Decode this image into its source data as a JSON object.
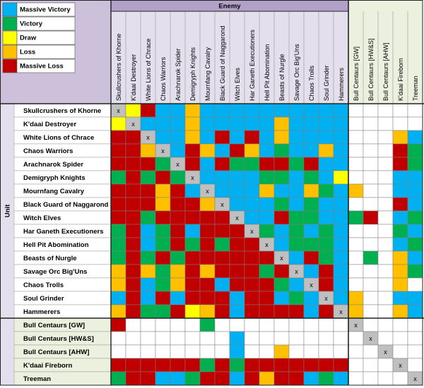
{
  "legend": [
    {
      "label": "Massive Victory",
      "color": "#00b0f0"
    },
    {
      "label": "Victory",
      "color": "#00b050"
    },
    {
      "label": "Draw",
      "color": "#ffff00"
    },
    {
      "label": "Loss",
      "color": "#ffc000"
    },
    {
      "label": "Massive Loss",
      "color": "#c00000"
    }
  ],
  "column_header": "Enemy",
  "row_header": "Unit",
  "columns": [
    "Skullcrushers of Khorne",
    "K'daai Destroyer",
    "White Lions of Chrace",
    "Chaos Warriors",
    "Arachnarok Spider",
    "Demigryph Knights",
    "Mournfang Cavalry",
    "Black Guard of Naggarond",
    "Witch Elves",
    "Har Ganeth Executioners",
    "Hell Pit Abomination",
    "Beasts of Nurgle",
    "Savage Orc Big'Uns",
    "Chaos Trolls",
    "Soul Grinder",
    "Hammerers",
    "Bull Centaurs [GW]",
    "Bull Centaurs [HW&S]",
    "Bull Centaurs [AHW]",
    "K'daai Fireborn",
    "Treeman"
  ],
  "rows": [
    {
      "label": "Skullcrushers of Khorne",
      "cells": [
        "x",
        2,
        4,
        0,
        0,
        3,
        0,
        0,
        0,
        0,
        0,
        0,
        0,
        0,
        0,
        0,
        null,
        null,
        null,
        null,
        null
      ]
    },
    {
      "label": "K'daai Destroyer",
      "cells": [
        2,
        "x",
        0,
        0,
        0,
        3,
        0,
        0,
        0,
        0,
        0,
        3,
        0,
        0,
        0,
        0,
        null,
        null,
        null,
        null,
        null
      ]
    },
    {
      "label": "White Lions of Chrace",
      "cells": [
        4,
        4,
        "x",
        0,
        0,
        3,
        0,
        4,
        0,
        4,
        0,
        3,
        0,
        0,
        0,
        0,
        null,
        null,
        null,
        3,
        0
      ]
    },
    {
      "label": "Chaos Warriors",
      "cells": [
        4,
        4,
        3,
        "x",
        0,
        4,
        3,
        0,
        4,
        3,
        0,
        1,
        0,
        0,
        3,
        0,
        null,
        null,
        null,
        4,
        1
      ]
    },
    {
      "label": "Arachnarok Spider",
      "cells": [
        4,
        4,
        4,
        1,
        "x",
        4,
        0,
        4,
        1,
        1,
        4,
        4,
        1,
        4,
        0,
        0,
        null,
        null,
        null,
        4,
        1
      ]
    },
    {
      "label": "Demigryph Knights",
      "cells": [
        1,
        4,
        1,
        4,
        1,
        "x",
        0,
        0,
        0,
        0,
        1,
        1,
        0,
        1,
        0,
        2,
        null,
        null,
        null,
        0,
        0
      ]
    },
    {
      "label": "Mournfang Cavalry",
      "cells": [
        4,
        4,
        4,
        3,
        4,
        0,
        "x",
        0,
        0,
        0,
        3,
        0,
        0,
        3,
        1,
        0,
        3,
        null,
        null,
        0,
        0
      ]
    },
    {
      "label": "Black Guard of Naggarond",
      "cells": [
        4,
        4,
        4,
        3,
        4,
        4,
        3,
        "x",
        0,
        0,
        0,
        1,
        0,
        1,
        0,
        0,
        null,
        null,
        null,
        4,
        0
      ]
    },
    {
      "label": "Witch Elves",
      "cells": [
        4,
        4,
        1,
        4,
        4,
        4,
        4,
        4,
        "x",
        0,
        0,
        4,
        1,
        1,
        0,
        0,
        1,
        4,
        null,
        0,
        1
      ]
    },
    {
      "label": "Har Ganeth Executioners",
      "cells": [
        1,
        4,
        0,
        1,
        4,
        0,
        4,
        4,
        4,
        "x",
        1,
        0,
        1,
        0,
        1,
        0,
        null,
        null,
        null,
        1,
        0
      ]
    },
    {
      "label": "Hell Pit Abomination",
      "cells": [
        1,
        4,
        0,
        1,
        4,
        1,
        4,
        1,
        4,
        4,
        "x",
        0,
        1,
        1,
        1,
        0,
        null,
        null,
        null,
        0,
        1
      ]
    },
    {
      "label": "Beasts of Nurgle",
      "cells": [
        1,
        4,
        1,
        4,
        1,
        4,
        4,
        4,
        4,
        4,
        4,
        "x",
        0,
        4,
        1,
        0,
        null,
        1,
        null,
        3,
        0
      ]
    },
    {
      "label": "Savage Orc Big'Uns",
      "cells": [
        3,
        4,
        3,
        1,
        3,
        4,
        3,
        4,
        4,
        4,
        1,
        4,
        "x",
        0,
        4,
        0,
        null,
        null,
        null,
        3,
        1
      ]
    },
    {
      "label": "Chaos Trolls",
      "cells": [
        3,
        4,
        0,
        1,
        3,
        4,
        4,
        0,
        4,
        4,
        4,
        1,
        0,
        "x",
        4,
        0,
        null,
        null,
        null,
        3,
        null
      ]
    },
    {
      "label": "Soul Grinder",
      "cells": [
        0,
        4,
        0,
        4,
        0,
        4,
        4,
        4,
        0,
        4,
        4,
        0,
        1,
        0,
        "x",
        0,
        3,
        null,
        null,
        0,
        0
      ]
    },
    {
      "label": "Hammerers",
      "cells": [
        3,
        4,
        1,
        1,
        4,
        2,
        3,
        4,
        0,
        4,
        4,
        4,
        4,
        0,
        4,
        "x",
        3,
        null,
        null,
        3,
        0
      ]
    },
    {
      "label": "Bull Centaurs [GW]",
      "cells": [
        4,
        null,
        null,
        null,
        null,
        null,
        1,
        null,
        null,
        null,
        null,
        null,
        null,
        null,
        null,
        null,
        "x",
        null,
        null,
        null,
        null
      ]
    },
    {
      "label": "Bull Centaurs [HW&S]",
      "cells": [
        null,
        null,
        null,
        null,
        null,
        null,
        null,
        null,
        0,
        null,
        null,
        null,
        null,
        null,
        null,
        null,
        null,
        "x",
        null,
        null,
        null
      ]
    },
    {
      "label": "Bull Centaurs [AHW]",
      "cells": [
        null,
        null,
        null,
        null,
        null,
        null,
        null,
        null,
        0,
        null,
        null,
        3,
        null,
        null,
        null,
        null,
        null,
        null,
        "x",
        null,
        null
      ]
    },
    {
      "label": "K'daai Fireborn",
      "cells": [
        4,
        4,
        4,
        4,
        4,
        4,
        1,
        4,
        1,
        4,
        4,
        4,
        4,
        4,
        4,
        4,
        null,
        null,
        null,
        "x",
        null
      ]
    },
    {
      "label": "Treeman",
      "cells": [
        1,
        4,
        4,
        0,
        0,
        1,
        4,
        4,
        0,
        4,
        3,
        4,
        4,
        0,
        1,
        0,
        null,
        null,
        null,
        null,
        "x"
      ]
    }
  ]
}
